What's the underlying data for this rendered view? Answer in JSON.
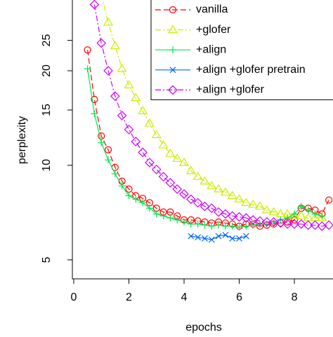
{
  "chart_data": {
    "type": "line",
    "xlabel": "epochs",
    "ylabel": "perplexity",
    "logy": true,
    "xlim": [
      -0.05,
      9.4
    ],
    "ylim": [
      4.35,
      33.6
    ],
    "xticks": [
      0,
      2,
      4,
      6,
      8
    ],
    "yticks": [
      5,
      10,
      15,
      20,
      25
    ],
    "legend": "top-right",
    "series": [
      {
        "name": "vanilla",
        "color": "#ff0000",
        "marker": "circle",
        "linestyle": "dashed",
        "x": [
          0.5,
          0.75,
          1.0,
          1.25,
          1.5,
          1.75,
          2.0,
          2.25,
          2.5,
          2.75,
          3.0,
          3.25,
          3.5,
          3.75,
          4.0,
          4.25,
          4.5,
          4.75,
          5.0,
          5.25,
          5.5,
          5.75,
          6.0,
          6.25,
          6.5,
          6.75,
          7.0,
          7.25,
          7.5,
          7.75,
          8.0,
          8.25,
          8.5,
          8.75,
          9.0,
          9.25
        ],
        "values": [
          23.3,
          16.2,
          12.4,
          11.2,
          9.85,
          8.9,
          8.4,
          8.0,
          7.85,
          7.6,
          7.3,
          7.1,
          7.1,
          6.9,
          6.7,
          6.7,
          6.65,
          6.6,
          6.55,
          6.6,
          6.55,
          6.5,
          6.4,
          6.5,
          6.5,
          6.4,
          6.45,
          6.5,
          6.55,
          6.6,
          6.7,
          7.3,
          7.3,
          7.2,
          7.0,
          7.75
        ]
      },
      {
        "name": "+glofer",
        "color": "#c8f000",
        "marker": "triangle",
        "linestyle": "dashdot",
        "x": [
          1.0,
          1.25,
          1.5,
          1.75,
          2.0,
          2.25,
          2.5,
          2.75,
          3.0,
          3.25,
          3.5,
          3.75,
          4.0,
          4.25,
          4.5,
          4.75,
          5.0,
          5.25,
          5.5,
          5.75,
          6.0,
          6.25,
          6.5,
          6.75,
          7.0,
          7.25,
          7.5,
          7.75,
          8.0,
          8.25,
          8.5,
          8.75,
          9.0
        ],
        "values": [
          35,
          28.5,
          24,
          20.3,
          18.0,
          16.4,
          14.9,
          13.6,
          12.5,
          11.6,
          10.9,
          10.5,
          10.2,
          9.6,
          9.2,
          8.9,
          8.6,
          8.4,
          8.2,
          8.0,
          7.8,
          7.6,
          7.5,
          7.4,
          7.2,
          7.1,
          7.0,
          7.0,
          6.9,
          6.9,
          6.8,
          6.8,
          6.8
        ]
      },
      {
        "name": "+align",
        "color": "#00e64d",
        "marker": "plus",
        "linestyle": "solid",
        "x": [
          0.5,
          0.75,
          1.0,
          1.25,
          1.5,
          1.75,
          2.0,
          2.25,
          2.5,
          2.75,
          3.0,
          3.25,
          3.5,
          3.75,
          4.0,
          4.25,
          4.5,
          4.75,
          5.0,
          5.25,
          5.5,
          5.75,
          6.0,
          6.25,
          6.5,
          6.75,
          7.0,
          7.25,
          7.5,
          7.75,
          8.0,
          8.25,
          8.5,
          8.75,
          9.0
        ],
        "values": [
          20.3,
          14.6,
          11.8,
          10.4,
          9.4,
          8.6,
          8.0,
          7.8,
          7.6,
          7.3,
          7.0,
          6.9,
          6.8,
          6.7,
          6.6,
          6.5,
          6.5,
          6.45,
          6.4,
          6.45,
          6.4,
          6.4,
          6.35,
          6.4,
          6.45,
          6.5,
          6.5,
          6.55,
          6.7,
          6.8,
          7.0,
          7.4,
          7.2,
          7.0,
          6.9
        ]
      },
      {
        "name": "+align +glofer pretrain",
        "color": "#0066ff",
        "marker": "cross",
        "linestyle": "solid",
        "x": [
          4.25,
          4.5,
          4.75,
          5.0,
          5.25,
          5.5,
          5.75,
          6.0,
          6.25
        ],
        "values": [
          5.95,
          5.9,
          5.85,
          5.8,
          5.95,
          6.0,
          5.85,
          5.85,
          5.95
        ]
      },
      {
        "name": "+align +glofer",
        "color": "#cc00ff",
        "marker": "diamond",
        "linestyle": "dashdot",
        "x": [
          0.75,
          1.0,
          1.25,
          1.5,
          1.75,
          2.0,
          2.25,
          2.5,
          2.75,
          3.0,
          3.25,
          3.5,
          3.75,
          4.0,
          4.25,
          4.5,
          4.75,
          5.0,
          5.25,
          5.5,
          5.75,
          6.0,
          6.25,
          6.5,
          6.75,
          7.0,
          7.25,
          7.5,
          7.75,
          8.0,
          8.25,
          8.5,
          8.75,
          9.0,
          9.25
        ],
        "values": [
          32.5,
          24.5,
          20.0,
          16.6,
          14.4,
          13.0,
          11.9,
          11.0,
          10.2,
          9.7,
          9.2,
          8.8,
          8.4,
          8.1,
          7.8,
          7.6,
          7.4,
          7.3,
          7.1,
          7.0,
          6.9,
          6.85,
          6.8,
          6.7,
          6.65,
          6.6,
          6.6,
          6.55,
          6.5,
          6.5,
          6.5,
          6.45,
          6.45,
          6.4,
          6.45
        ]
      }
    ]
  }
}
